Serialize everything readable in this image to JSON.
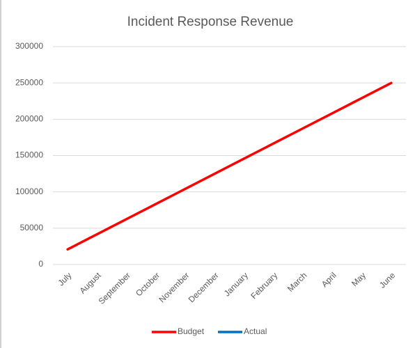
{
  "chart_data": {
    "type": "line",
    "title": "Incident Response Revenue",
    "categories": [
      "July",
      "August",
      "September",
      "October",
      "November",
      "December",
      "January",
      "February",
      "March",
      "April",
      "May",
      "June"
    ],
    "series": [
      {
        "name": "Budget",
        "color": "#ff0000",
        "values": [
          20833,
          41667,
          62500,
          83333,
          104167,
          125000,
          145833,
          166667,
          187500,
          208333,
          229167,
          250000
        ]
      },
      {
        "name": "Actual",
        "color": "#0070c0",
        "values": [
          null,
          null,
          null,
          null,
          null,
          null,
          null,
          null,
          null,
          null,
          null,
          null
        ]
      }
    ],
    "ylim": [
      0,
      300000
    ],
    "yticks": [
      0,
      50000,
      100000,
      150000,
      200000,
      250000,
      300000
    ],
    "grid": true,
    "legend": "bottom"
  }
}
